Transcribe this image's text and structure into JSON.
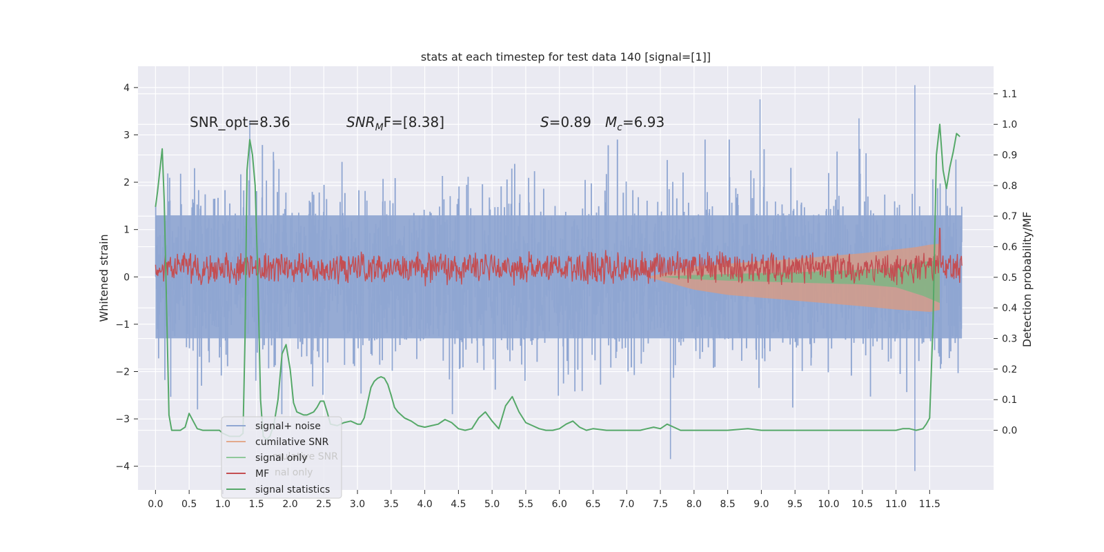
{
  "chart_data": {
    "type": "line",
    "title": "stats at each timestep for test data 140 [signal=[1]]",
    "xlabel": "",
    "ylabel_left": "Whitened strain",
    "ylabel_right": "Detection probability/MF",
    "xlim": [
      -0.26,
      12.45
    ],
    "ylim_left": [
      -4.5,
      4.45
    ],
    "ylim_right": [
      -0.195,
      1.19
    ],
    "x_ticks": [
      "0.0",
      "0.5",
      "1.0",
      "1.5",
      "2.0",
      "2.5",
      "3.0",
      "3.5",
      "4.0",
      "4.5",
      "5.0",
      "5.5",
      "6.0",
      "6.5",
      "7.0",
      "7.5",
      "8.0",
      "8.5",
      "9.0",
      "9.5",
      "10.0",
      "10.5",
      "11.0",
      "11.5"
    ],
    "y_left_ticks": [
      "−4",
      "−3",
      "−2",
      "−1",
      "0",
      "1",
      "2",
      "3",
      "4"
    ],
    "y_right_ticks": [
      "0.0",
      "0.1",
      "0.2",
      "0.3",
      "0.4",
      "0.5",
      "0.6",
      "0.7",
      "0.8",
      "0.9",
      "1.0",
      "1.1"
    ],
    "annotations": {
      "snr_opt": "SNR_opt=8.36",
      "snr_mf_main": "SNR",
      "snr_mf_sub": "M",
      "snr_mf_rest": "F=[8.38]",
      "s_main": "S",
      "s_rest": "=0.89",
      "mc_main": "M",
      "mc_sub": "c",
      "mc_rest": "=6.93"
    },
    "legend": {
      "position": "lower-left",
      "entries": [
        {
          "label": "signal+ noise",
          "color": "#8fa6d2"
        },
        {
          "label": "cumilative SNR",
          "color": "#e2a98c"
        },
        {
          "label": "signal only",
          "color": "#8fc89a"
        },
        {
          "label": "MF",
          "color": "#c44e52"
        },
        {
          "label": "signal statistics",
          "color": "#55a868"
        }
      ],
      "ghost_labels": [
        "mulative SNR",
        "nal only"
      ]
    },
    "series": [
      {
        "name": "signal+ noise",
        "kind": "noise_band",
        "axis": "left",
        "x_range": [
          0.0,
          11.98
        ],
        "envelope_typical": [
          -2.4,
          2.4
        ],
        "notable_peaks": [
          {
            "x": 1.4,
            "y": 3.3
          },
          {
            "x": 8.98,
            "y": 3.75
          },
          {
            "x": 10.45,
            "y": 3.35
          },
          {
            "x": 11.28,
            "y": 4.05
          },
          {
            "x": 11.28,
            "y": -4.1
          },
          {
            "x": 7.65,
            "y": -3.85
          }
        ],
        "dense_core": [
          -1.3,
          1.3
        ]
      },
      {
        "name": "cumilative SNR",
        "kind": "band",
        "axis": "left",
        "x": [
          7.3,
          8.0,
          8.5,
          9.0,
          9.5,
          10.0,
          10.5,
          11.0,
          11.3,
          11.5,
          11.65
        ],
        "upper": [
          0.0,
          0.22,
          0.28,
          0.33,
          0.38,
          0.44,
          0.5,
          0.58,
          0.63,
          0.68,
          0.7
        ],
        "lower": [
          0.0,
          -0.27,
          -0.38,
          -0.44,
          -0.5,
          -0.56,
          -0.62,
          -0.69,
          -0.72,
          -0.74,
          -0.7
        ]
      },
      {
        "name": "signal only",
        "kind": "band",
        "axis": "left",
        "x": [
          7.5,
          8.0,
          8.5,
          9.0,
          9.5,
          10.0,
          10.5,
          11.0,
          11.4,
          11.65
        ],
        "upper": [
          0.0,
          0.04,
          0.06,
          0.08,
          0.1,
          0.12,
          0.15,
          0.2,
          0.32,
          0.35
        ],
        "lower": [
          0.0,
          -0.05,
          -0.08,
          -0.1,
          -0.12,
          -0.14,
          -0.16,
          -0.22,
          -0.4,
          -0.55
        ]
      },
      {
        "name": "MF",
        "kind": "noise_line",
        "axis": "right",
        "x_range": [
          0.0,
          11.98
        ],
        "baseline": 0.53,
        "amplitude": 0.06,
        "spike": {
          "x": 11.65,
          "y": 0.66
        }
      },
      {
        "name": "signal statistics",
        "kind": "line",
        "axis": "right",
        "x": [
          0.0,
          0.03,
          0.07,
          0.1,
          0.13,
          0.16,
          0.2,
          0.24,
          0.3,
          0.37,
          0.44,
          0.5,
          0.56,
          0.62,
          0.7,
          0.8,
          0.9,
          0.95,
          1.0,
          1.05,
          1.1,
          1.15,
          1.2,
          1.25,
          1.3,
          1.33,
          1.36,
          1.4,
          1.44,
          1.48,
          1.52,
          1.56,
          1.6,
          1.65,
          1.7,
          1.76,
          1.82,
          1.88,
          1.94,
          2.0,
          2.05,
          2.1,
          2.15,
          2.2,
          2.25,
          2.3,
          2.35,
          2.4,
          2.45,
          2.5,
          2.55,
          2.6,
          2.7,
          2.8,
          2.9,
          3.0,
          3.05,
          3.1,
          3.15,
          3.2,
          3.25,
          3.3,
          3.35,
          3.4,
          3.45,
          3.5,
          3.55,
          3.6,
          3.7,
          3.8,
          3.9,
          4.0,
          4.1,
          4.2,
          4.3,
          4.4,
          4.5,
          4.6,
          4.7,
          4.8,
          4.9,
          5.0,
          5.1,
          5.2,
          5.3,
          5.4,
          5.5,
          5.6,
          5.7,
          5.8,
          5.9,
          6.0,
          6.1,
          6.2,
          6.3,
          6.4,
          6.5,
          6.7,
          6.9,
          7.1,
          7.2,
          7.3,
          7.4,
          7.5,
          7.6,
          7.7,
          7.8,
          8.0,
          8.2,
          8.5,
          8.8,
          9.0,
          9.5,
          10.0,
          10.5,
          11.0,
          11.1,
          11.2,
          11.3,
          11.4,
          11.45,
          11.5,
          11.55,
          11.6,
          11.65,
          11.7,
          11.75,
          11.8,
          11.85,
          11.9,
          11.95
        ],
        "y": [
          0.73,
          0.78,
          0.86,
          0.92,
          0.75,
          0.45,
          0.05,
          0.0,
          0.0,
          0.0,
          0.01,
          0.055,
          0.03,
          0.005,
          0.0,
          0.0,
          0.0,
          0.0,
          -0.01,
          -0.015,
          -0.02,
          -0.02,
          -0.02,
          -0.02,
          -0.01,
          0.3,
          0.85,
          0.95,
          0.9,
          0.8,
          0.5,
          0.1,
          -0.02,
          -0.03,
          -0.02,
          0.02,
          0.1,
          0.25,
          0.28,
          0.2,
          0.09,
          0.06,
          0.055,
          0.05,
          0.05,
          0.055,
          0.06,
          0.075,
          0.095,
          0.095,
          0.06,
          0.02,
          0.015,
          0.025,
          0.03,
          0.02,
          0.02,
          0.04,
          0.09,
          0.14,
          0.16,
          0.17,
          0.175,
          0.17,
          0.15,
          0.115,
          0.075,
          0.06,
          0.04,
          0.03,
          0.015,
          0.01,
          0.015,
          0.02,
          0.035,
          0.025,
          0.005,
          0.0,
          0.005,
          0.04,
          0.06,
          0.03,
          0.005,
          0.08,
          0.11,
          0.06,
          0.025,
          0.015,
          0.005,
          0.0,
          0.0,
          0.005,
          0.02,
          0.03,
          0.01,
          0.0,
          0.005,
          0.0,
          0.0,
          0.0,
          0.0,
          0.005,
          0.01,
          0.005,
          0.02,
          0.01,
          0.0,
          0.0,
          0.0,
          0.0,
          0.005,
          0.0,
          0.0,
          0.0,
          0.0,
          0.0,
          0.005,
          0.005,
          0.0,
          0.005,
          0.02,
          0.04,
          0.35,
          0.9,
          1.0,
          0.85,
          0.79,
          0.86,
          0.91,
          0.97,
          0.96
        ]
      }
    ]
  }
}
